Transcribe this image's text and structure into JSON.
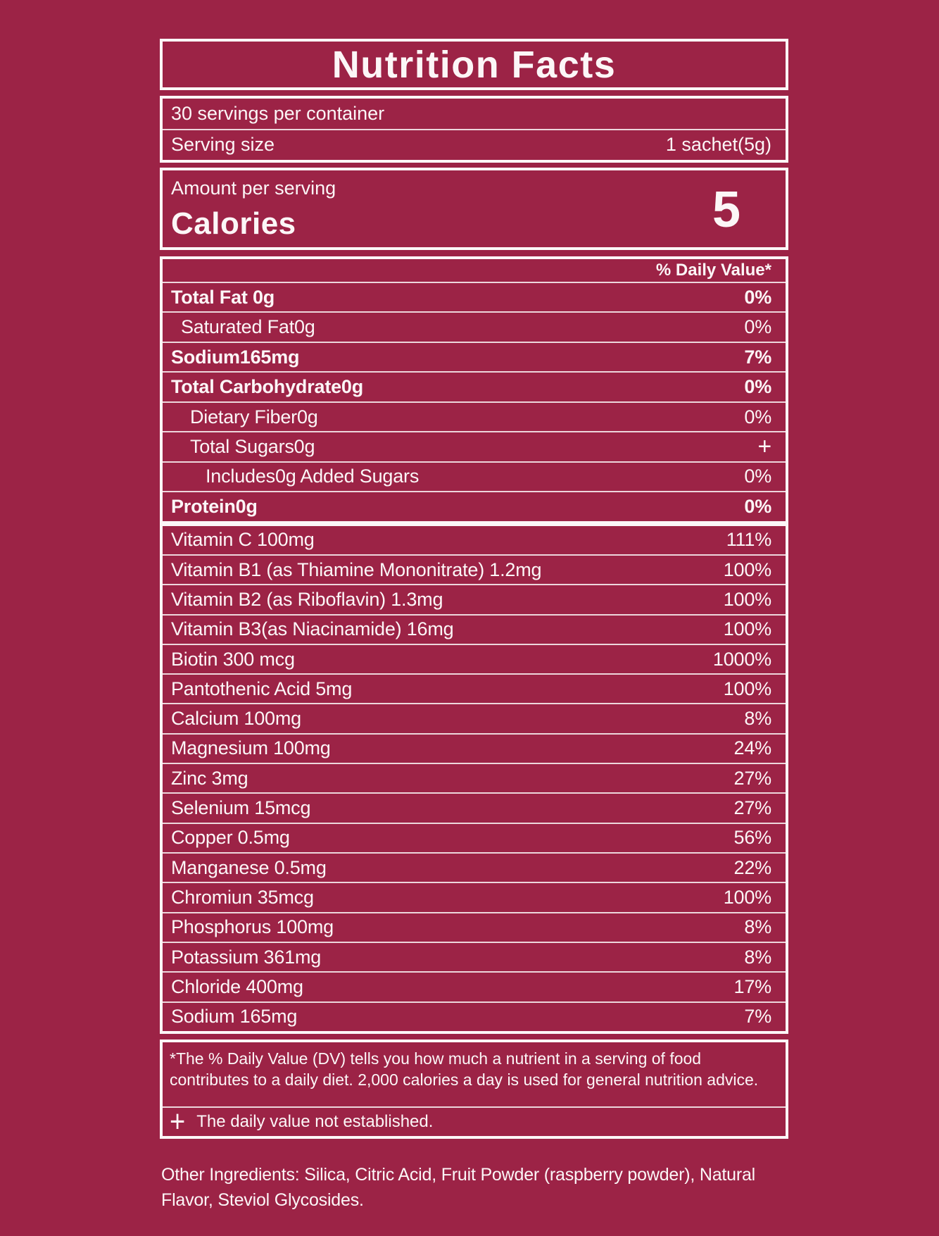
{
  "title": "Nutrition Facts",
  "servings_per_container": "30 servings per container",
  "serving_size_label": "Serving size",
  "serving_size_value": "1 sachet(5g)",
  "amount_per_serving": "Amount per serving",
  "calories_label": "Calories",
  "calories_value": "5",
  "daily_value_header": "% Daily Value*",
  "macro_rows": [
    {
      "label": "Total Fat 0g",
      "value": "0%",
      "bold": true,
      "indent": 0
    },
    {
      "label": "Saturated Fat0g",
      "value": "0%",
      "bold": false,
      "indent": 1
    },
    {
      "label": "Sodium165mg",
      "value": "7%",
      "bold": true,
      "indent": 0
    },
    {
      "label": "Total Carbohydrate0g",
      "value": "0%",
      "bold": true,
      "indent": 0
    },
    {
      "label": "Dietary Fiber0g",
      "value": "0%",
      "bold": false,
      "indent": 2
    },
    {
      "label": "Total Sugars0g",
      "value": "+",
      "bold": false,
      "indent": 2
    },
    {
      "label": "Includes0g Added Sugars",
      "value": "0%",
      "bold": false,
      "indent": 3
    },
    {
      "label": "Protein0g",
      "value": "0%",
      "bold": true,
      "indent": 0
    }
  ],
  "micro_rows": [
    {
      "label": "Vitamin C 100mg",
      "value": "111%"
    },
    {
      "label": "Vitamin B1 (as Thiamine Mononitrate) 1.2mg",
      "value": "100%"
    },
    {
      "label": "Vitamin B2 (as Riboflavin) 1.3mg",
      "value": "100%"
    },
    {
      "label": "Vitamin B3(as Niacinamide) 16mg",
      "value": "100%"
    },
    {
      "label": "Biotin 300 mcg",
      "value": "1000%"
    },
    {
      "label": "Pantothenic Acid 5mg",
      "value": "100%"
    },
    {
      "label": "Calcium 100mg",
      "value": "8%"
    },
    {
      "label": "Magnesium 100mg",
      "value": "24%"
    },
    {
      "label": "Zinc 3mg",
      "value": "27%"
    },
    {
      "label": "Selenium 15mcg",
      "value": "27%"
    },
    {
      "label": "Copper 0.5mg",
      "value": "56%"
    },
    {
      "label": "Manganese 0.5mg",
      "value": "22%"
    },
    {
      "label": "Chromiun 35mcg",
      "value": "100%"
    },
    {
      "label": "Phosphorus 100mg",
      "value": "8%"
    },
    {
      "label": "Potassium 361mg",
      "value": "8%"
    },
    {
      "label": "Chloride 400mg",
      "value": "17%"
    },
    {
      "label": "Sodium 165mg",
      "value": "7%"
    }
  ],
  "footnote": "*The % Daily Value (DV) tells you how much a nutrient in a serving of food contributes to a daily diet. 2,000 calories a day is used for general nutrition advice.",
  "daily_value_note_symbol": "+",
  "daily_value_note": "The daily value not established.",
  "other_ingredients": "Other Ingredients: Silica, Citric Acid, Fruit Powder (raspberry powder), Natural Flavor, Steviol Glycosides.",
  "colors": {
    "background": "#9C2346",
    "foreground": "#FCF6F7"
  }
}
